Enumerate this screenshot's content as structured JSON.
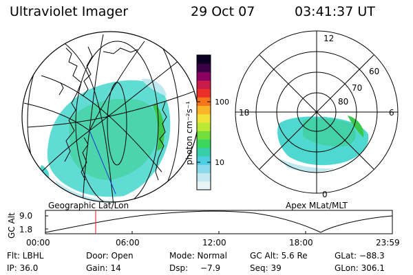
{
  "header": {
    "instrument": "Ultraviolet Imager",
    "date": "29 Oct 07",
    "time": "03:41:37 UT"
  },
  "left_panel": {
    "label": "Geographic Lat/Lon"
  },
  "right_panel": {
    "label": "Apex  MLat/MLT",
    "mlt_labels": {
      "top": "12",
      "left": "18",
      "right": "6",
      "bottom": "0"
    },
    "lat_labels": [
      "60",
      "70",
      "80"
    ]
  },
  "colorbar": {
    "unit_label": "photon cm⁻²s⁻¹",
    "tick_labels": [
      "100",
      "10"
    ],
    "colors": [
      "#0b0024",
      "#3a0047",
      "#8a0060",
      "#c81b48",
      "#ec2f29",
      "#f5761b",
      "#f9b42a",
      "#f1e23a",
      "#bde833",
      "#73de3a",
      "#3cd55d",
      "#36cfa8",
      "#4fcde0",
      "#8ad9ec",
      "#c4e9f3",
      "#e9f4f7"
    ]
  },
  "altitude_plot": {
    "ylabel": "GC Alt",
    "y_ticks": [
      "9.0",
      "1.8"
    ],
    "x_ticks": [
      "00:00",
      "06:00",
      "12:00",
      "18:00",
      "23:59"
    ]
  },
  "info": {
    "row1": {
      "filter": "Flt: LBHL",
      "door": "Door: Open",
      "mode": "Mode: Normal",
      "gc_alt": "GC Alt: 5.6 Re",
      "glat": "GLat: −88.3"
    },
    "row2": {
      "ip": "IP: 36.0",
      "gain": "Gain: 14",
      "dsp_label": "Dsp:",
      "dsp_value": "−7.9",
      "seq": "Seq: 39",
      "glon": "GLon: 306.1"
    }
  }
}
